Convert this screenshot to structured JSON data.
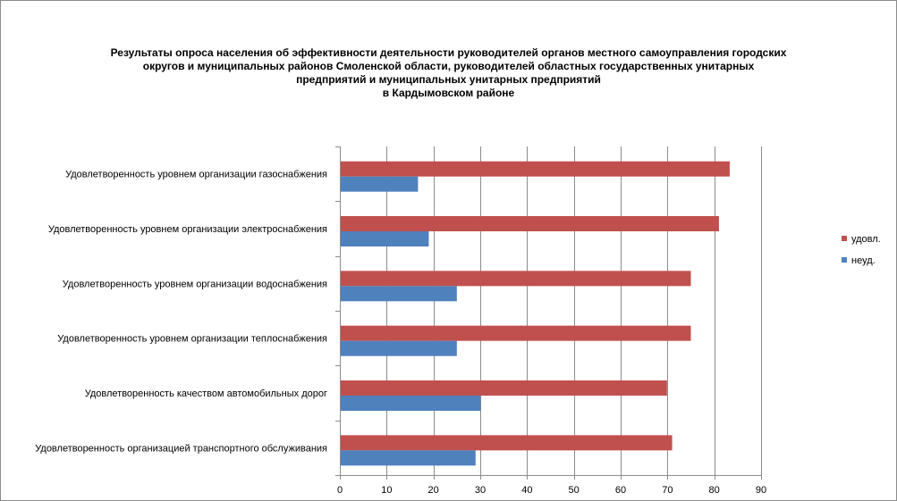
{
  "chart_data": {
    "type": "bar",
    "orientation": "horizontal",
    "title_lines": [
      "Результаты опроса населения об эффективности деятельности руководителей органов местного самоуправления городских",
      "округов и муниципальных районов Смоленской области, руководителей областных государственных унитарных",
      "предприятий и  муниципальных унитарных предприятий",
      "в Кардымовском районе"
    ],
    "categories": [
      "Удовлетворенность  уровнем  организации газоснабжения",
      "Удовлетворенность  уровнем  организации электроснабжения",
      "Удовлетворенность  уровнем  организации водоснабжения",
      "Удовлетворенность  уровнем  организации теплоснабжения",
      "Удовлетворенность  качеством  автомобильных  дорог",
      "Удовлетворенность  организацией  транспортного обслуживания"
    ],
    "series": [
      {
        "name": "удовл.",
        "values": [
          83.3,
          81,
          75,
          75,
          69.9,
          71
        ],
        "color": "#c0504d"
      },
      {
        "name": "неуд.",
        "values": [
          16.7,
          19,
          25,
          25,
          30.1,
          29
        ],
        "color": "#4f81bd"
      }
    ],
    "xlim": [
      0,
      90
    ],
    "xticks": [
      "0",
      "10",
      "20",
      "30",
      "40",
      "50",
      "60",
      "70",
      "80",
      "90"
    ],
    "grid": true,
    "legend_position": "right"
  }
}
